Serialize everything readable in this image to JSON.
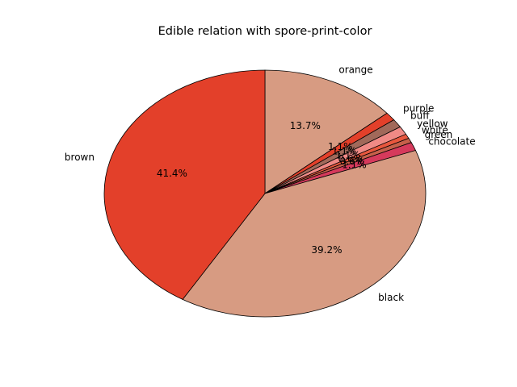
{
  "chart_data": {
    "type": "pie",
    "title": "Edible relation with spore-print-color",
    "start_angle_deg": 90,
    "direction": "clockwise",
    "slices": [
      {
        "label": "orange",
        "pct_text": "13.7%",
        "value": 13.7,
        "color": "#d79b82"
      },
      {
        "label": "purple",
        "pct_text": "1.1%",
        "value": 1.1,
        "color": "#e3402a"
      },
      {
        "label": "buff",
        "pct_text": "1.1%",
        "value": 1.1,
        "color": "#a1695a"
      },
      {
        "label": "yellow",
        "pct_text": "1.1%",
        "value": 1.1,
        "color": "#f08a86"
      },
      {
        "label": "white",
        "pct_text": "0.6%",
        "value": 0.6,
        "color": "#e8573e"
      },
      {
        "label": "green",
        "pct_text": "0.6%",
        "value": 0.6,
        "color": "#c6604a"
      },
      {
        "label": "chocolate",
        "pct_text": "1.1%",
        "value": 1.1,
        "color": "#d63a5c"
      },
      {
        "label": "black",
        "pct_text": "39.2%",
        "value": 39.2,
        "color": "#d79b82"
      },
      {
        "label": "brown",
        "pct_text": "41.4%",
        "value": 41.4,
        "color": "#e3402a"
      }
    ]
  }
}
